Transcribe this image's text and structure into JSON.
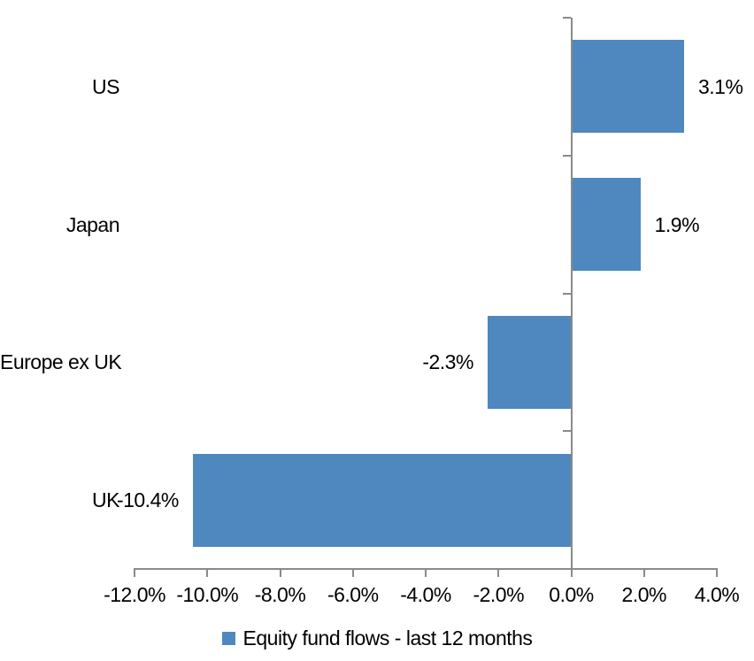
{
  "chart_data": {
    "type": "bar",
    "orientation": "horizontal",
    "title": "",
    "categories": [
      "US",
      "Japan",
      "Europe ex UK",
      "UK"
    ],
    "values": [
      3.1,
      1.9,
      -2.3,
      -10.4
    ],
    "data_labels": [
      "3.1%",
      "1.9%",
      "-2.3%",
      "-10.4%"
    ],
    "series_name": "Equity fund flows - last 12 months",
    "xlim": [
      -12,
      4
    ],
    "x_tick_step": 2,
    "x_tick_labels": [
      "-12.0%",
      "-10.0%",
      "-8.0%",
      "-6.0%",
      "-4.0%",
      "-2.0%",
      "0.0%",
      "2.0%",
      "4.0%"
    ],
    "grid": false,
    "legend_position": "bottom",
    "colors": {
      "bar": "#4E88BE",
      "axis": "#8A8A8A",
      "text": "#000000",
      "background": "#FFFFFF"
    }
  }
}
